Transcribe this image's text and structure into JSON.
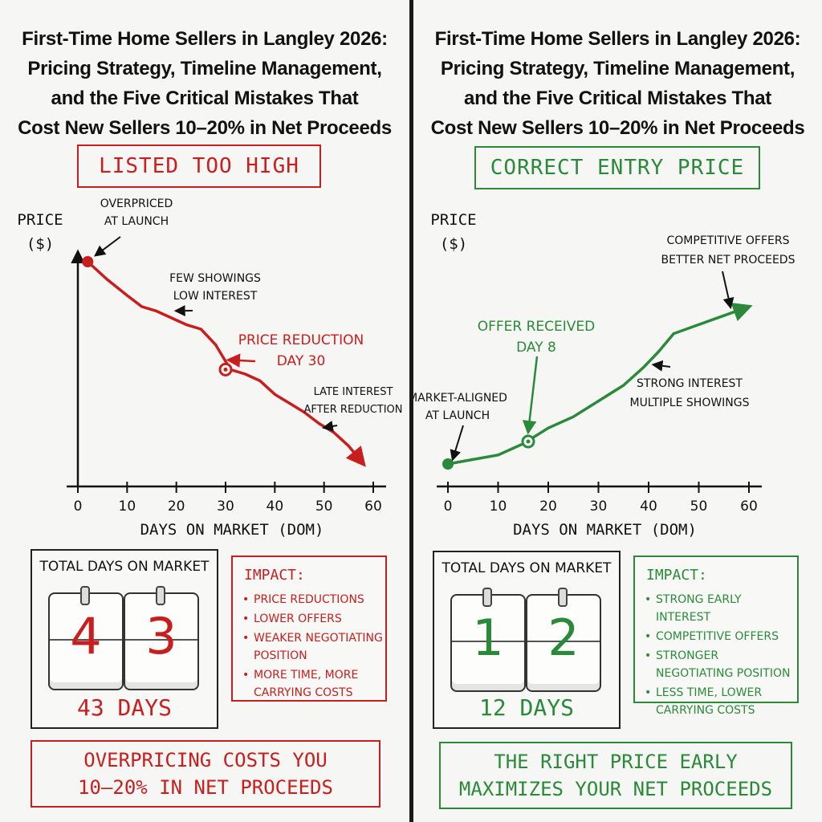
{
  "title": "First-Time Home Sellers in Langley 2026: Pricing Strategy, Timeline Management, and the Five Critical Mistakes That Cost New Sellers 10–20% in Net Proceeds",
  "title_lines": [
    "First-Time Home Sellers in Langley 2026:",
    "Pricing Strategy, Timeline Management,",
    "and the Five Critical Mistakes That",
    "Cost New Sellers 10–20% in Net Proceeds"
  ],
  "colors": {
    "red": "#c81e1e",
    "green": "#2a8a3a",
    "ink": "#111111"
  },
  "chart_data": [
    {
      "type": "line",
      "title": "LISTED TOO HIGH",
      "xlabel": "DAYS ON MARKET (DOM)",
      "ylabel": "PRICE ($)",
      "xlim": [
        0,
        60
      ],
      "x_ticks": [
        0,
        10,
        20,
        30,
        40,
        50,
        60
      ],
      "ylim": [
        0,
        100
      ],
      "grid": false,
      "series": [
        {
          "x": [
            2,
            6,
            10,
            13,
            16,
            19,
            22,
            25,
            28,
            31,
            34,
            37,
            40,
            43,
            46,
            49,
            52,
            55,
            58
          ],
          "y": [
            100,
            92,
            85,
            80,
            78,
            75,
            72,
            70,
            63,
            52,
            50,
            47,
            41,
            37,
            33,
            28,
            24,
            18,
            10
          ]
        }
      ],
      "annotations": [
        {
          "text": [
            "OVERPRICED",
            "AT LAUNCH"
          ],
          "x": 2,
          "y": 100
        },
        {
          "text": [
            "FEW SHOWINGS",
            "LOW INTEREST"
          ],
          "x": 19,
          "y": 76
        },
        {
          "text": [
            "PRICE REDUCTION",
            "DAY 30"
          ],
          "x": 30,
          "y": 52
        },
        {
          "text": [
            "LATE INTEREST",
            "AFTER REDUCTION"
          ],
          "x": 50,
          "y": 24
        }
      ]
    },
    {
      "type": "line",
      "title": "CORRECT ENTRY PRICE",
      "xlabel": "DAYS ON MARKET (DOM)",
      "ylabel": "PRICE ($)",
      "xlim": [
        0,
        60
      ],
      "x_ticks": [
        0,
        10,
        20,
        30,
        40,
        50,
        60
      ],
      "ylim": [
        0,
        100
      ],
      "grid": false,
      "series": [
        {
          "x": [
            0,
            5,
            10,
            15,
            20,
            25,
            30,
            35,
            39,
            42,
            45,
            50,
            55,
            60
          ],
          "y": [
            10,
            12,
            14,
            19,
            26,
            31,
            38,
            45,
            53,
            60,
            68,
            72,
            76,
            80
          ]
        }
      ],
      "annotations": [
        {
          "text": [
            "MARKET-ALIGNED",
            "AT LAUNCH"
          ],
          "x": 0,
          "y": 10
        },
        {
          "text": [
            "OFFER RECEIVED",
            "DAY 8"
          ],
          "x": 16,
          "y": 20
        },
        {
          "text": [
            "STRONG INTEREST",
            "MULTIPLE SHOWINGS"
          ],
          "x": 41,
          "y": 57
        },
        {
          "text": [
            "COMPETITIVE OFFERS",
            "BETTER NET PROCEEDS"
          ],
          "x": 56,
          "y": 77
        }
      ]
    }
  ],
  "left": {
    "heading": "LISTED TOO HIGH",
    "counter_label": "TOTAL DAYS ON MARKET",
    "digits": [
      "4",
      "3"
    ],
    "days_label": "43 DAYS",
    "impact_title": "IMPACT:",
    "impact_items": [
      "PRICE REDUCTIONS",
      "LOWER OFFERS",
      "WEAKER NEGOTIATING POSITION",
      "MORE TIME, MORE CARRYING COSTS"
    ],
    "footer_lines": [
      "OVERPRICING COSTS YOU",
      "10–20% IN NET PROCEEDS"
    ]
  },
  "right": {
    "heading": "CORRECT ENTRY PRICE",
    "counter_label": "TOTAL DAYS ON MARKET",
    "digits": [
      "1",
      "2"
    ],
    "days_label": "12 DAYS",
    "impact_title": "IMPACT:",
    "impact_items": [
      "STRONG EARLY INTEREST",
      "COMPETITIVE OFFERS",
      "STRONGER NEGOTIATING POSITION",
      "LESS TIME, LOWER CARRYING COSTS"
    ],
    "footer_lines": [
      "THE RIGHT PRICE EARLY",
      "MAXIMIZES YOUR NET PROCEEDS"
    ]
  }
}
